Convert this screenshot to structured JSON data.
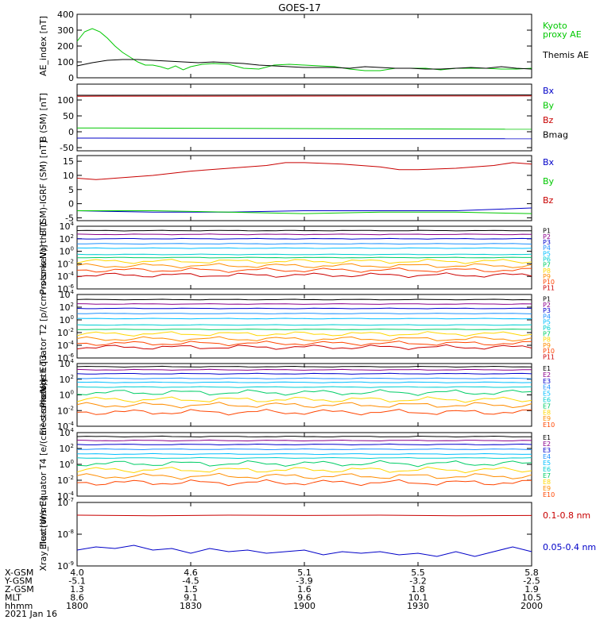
{
  "title": "GOES-17",
  "date": "2021 Jan 16",
  "colors": {
    "black": "#000000",
    "green": "#00c800",
    "red": "#c80000",
    "blue": "#0000c8",
    "P": [
      "#000000",
      "#8b008b",
      "#0000cd",
      "#1e90ff",
      "#00bfff",
      "#00ced1",
      "#00cd66",
      "#ffd700",
      "#ff8c00",
      "#ff4500",
      "#cd0000"
    ],
    "E": [
      "#000000",
      "#8b008b",
      "#0000cd",
      "#1e90ff",
      "#00bfff",
      "#00ced1",
      "#00cd66",
      "#ffd700",
      "#ff8c00",
      "#ff4500"
    ]
  },
  "ephemeris": {
    "ticks": [
      "1800",
      "1830",
      "1900",
      "1930",
      "2000"
    ],
    "rows": [
      {
        "label": "X-GSM",
        "values": [
          "4.0",
          "4.6",
          "5.1",
          "5.5",
          "5.8"
        ]
      },
      {
        "label": "Y-GSM",
        "values": [
          "-5.1",
          "-4.5",
          "-3.9",
          "-3.2",
          "-2.5"
        ]
      },
      {
        "label": "Z-GSM",
        "values": [
          "1.3",
          "1.5",
          "1.6",
          "1.8",
          "1.9"
        ]
      },
      {
        "label": "MLT",
        "values": [
          "8.6",
          "9.1",
          "9.6",
          "10.1",
          "10.5"
        ]
      },
      {
        "label": "hhmm",
        "values": [
          "1800",
          "1830",
          "1900",
          "1930",
          "2000"
        ]
      }
    ]
  },
  "chart_data": [
    {
      "type": "line",
      "ylabel": "AE_index [nT]",
      "ylim": [
        0,
        400
      ],
      "yticks": [
        "0",
        "100",
        "200",
        "300",
        "400"
      ],
      "series": [
        {
          "name": "Kyoto proxy AE",
          "color": "green",
          "legend": [
            "Kyoto",
            "proxy AE"
          ],
          "x": [
            0,
            2,
            4,
            6,
            8,
            10,
            12,
            14,
            16,
            18,
            20,
            22,
            24,
            26,
            28,
            30,
            33,
            36,
            40,
            44,
            48,
            52,
            56,
            60,
            64,
            68,
            72,
            76,
            80,
            84,
            88,
            92,
            96,
            100,
            104,
            108,
            112,
            116,
            120
          ],
          "values": [
            230,
            290,
            310,
            290,
            250,
            200,
            160,
            130,
            100,
            80,
            80,
            70,
            55,
            75,
            50,
            70,
            85,
            90,
            85,
            60,
            55,
            80,
            85,
            80,
            75,
            70,
            55,
            45,
            45,
            60,
            60,
            60,
            50,
            60,
            60,
            60,
            55,
            55,
            60
          ]
        },
        {
          "name": "Themis AE",
          "color": "black",
          "legend": [
            "Themis AE"
          ],
          "x": [
            0,
            4,
            8,
            12,
            16,
            20,
            24,
            28,
            32,
            36,
            40,
            44,
            48,
            52,
            56,
            60,
            64,
            68,
            72,
            76,
            80,
            84,
            88,
            92,
            96,
            100,
            104,
            108,
            112,
            116,
            120
          ],
          "values": [
            75,
            95,
            110,
            115,
            115,
            110,
            105,
            100,
            95,
            100,
            95,
            90,
            80,
            75,
            70,
            65,
            65,
            65,
            60,
            70,
            65,
            60,
            60,
            55,
            55,
            60,
            65,
            60,
            70,
            60,
            55
          ]
        }
      ]
    },
    {
      "type": "line",
      "ylabel": "B (SM) [nT]",
      "ylim": [
        -60,
        150
      ],
      "yticks": [
        "-50",
        "0",
        "50",
        "100"
      ],
      "series": [
        {
          "name": "Bx",
          "color": "blue",
          "x": [
            0,
            120
          ],
          "values": [
            -20,
            -22
          ]
        },
        {
          "name": "By",
          "color": "green",
          "x": [
            0,
            120
          ],
          "values": [
            12,
            8
          ]
        },
        {
          "name": "Bz",
          "color": "red",
          "x": [
            0,
            120
          ],
          "values": [
            112,
            113
          ]
        },
        {
          "name": "Bmag",
          "color": "black",
          "x": [
            0,
            120
          ],
          "values": [
            115,
            116
          ]
        }
      ]
    },
    {
      "type": "line",
      "ylabel": "B (SM)-IGRF (SM) [nT]",
      "ylim": [
        -6,
        17
      ],
      "yticks": [
        "-5",
        "0",
        "5",
        "10",
        "15"
      ],
      "series": [
        {
          "name": "Bx",
          "color": "blue",
          "x": [
            0,
            20,
            40,
            60,
            80,
            100,
            120
          ],
          "values": [
            -2.5,
            -3,
            -3,
            -2.5,
            -2.5,
            -2.5,
            -1.5
          ]
        },
        {
          "name": "By",
          "color": "green",
          "x": [
            0,
            20,
            40,
            60,
            80,
            100,
            120
          ],
          "values": [
            -2.5,
            -2.5,
            -3,
            -3.5,
            -3,
            -3,
            -3.5
          ]
        },
        {
          "name": "Bz",
          "color": "red",
          "x": [
            0,
            5,
            10,
            20,
            30,
            40,
            50,
            55,
            60,
            70,
            80,
            85,
            90,
            100,
            110,
            115,
            120
          ],
          "values": [
            9,
            8.5,
            9,
            10,
            11.5,
            12.5,
            13.5,
            14.5,
            14.5,
            14,
            13,
            12,
            12,
            12.5,
            13.5,
            14.5,
            14
          ]
        }
      ]
    },
    {
      "type": "line",
      "log": true,
      "ylabel": "Protons North T1",
      "ylim": [
        -6,
        4
      ],
      "yticks": [
        "10^-6",
        "10^-4",
        "10^-2",
        "10^0",
        "10^2",
        "10^4"
      ],
      "labels": [
        "P1",
        "P2",
        "P3",
        "P4",
        "P5",
        "P6",
        "P7",
        "P8",
        "P9",
        "P10",
        "P11"
      ],
      "levels": [
        3.3,
        2.7,
        2.0,
        1.2,
        0.5,
        -0.5,
        -1.0,
        -1.6,
        -2.3,
        -3.0,
        -3.8
      ]
    },
    {
      "type": "line",
      "log": true,
      "ylabel": "Protons Equator T2 [p/(cm²-s-sr-keV)]",
      "ylim": [
        -6,
        4
      ],
      "yticks": [
        "10^-6",
        "10^-4",
        "10^-2",
        "10^0",
        "10^2",
        "10^4"
      ],
      "labels": [
        "P1",
        "P2",
        "P3",
        "P4",
        "P5",
        "P6",
        "P7",
        "P8",
        "P9",
        "P10",
        "P11"
      ],
      "levels": [
        3.2,
        2.5,
        1.8,
        1.0,
        0.2,
        -0.8,
        -1.5,
        -2.2,
        -3.0,
        -3.7,
        -4.3
      ]
    },
    {
      "type": "line",
      "log": true,
      "ylabel": "Electrons North T3",
      "ylim": [
        -4,
        4
      ],
      "yticks": [
        "10^-4",
        "10^-2",
        "10^0",
        "10^2",
        "10^4"
      ],
      "labels": [
        "E1",
        "E2",
        "E3",
        "E4",
        "E5",
        "E6",
        "E7",
        "E8",
        "E9",
        "E10"
      ],
      "levels": [
        3.6,
        3.2,
        2.7,
        2.1,
        1.6,
        1.0,
        0.3,
        -0.6,
        -1.3,
        -2.2
      ]
    },
    {
      "type": "line",
      "log": true,
      "ylabel": "Electrons Equator T4 [e/(cm²-s-sr-keV)]",
      "ylim": [
        -4,
        4
      ],
      "yticks": [
        "10^-4",
        "10^-2",
        "10^0",
        "10^2",
        "10^4"
      ],
      "labels": [
        "E1",
        "E2",
        "E3",
        "E4",
        "E5",
        "E6",
        "E7",
        "E8",
        "E9",
        "E10"
      ],
      "levels": [
        3.5,
        3.0,
        2.5,
        1.9,
        1.3,
        0.8,
        0.1,
        -0.7,
        -1.5,
        -2.3
      ]
    },
    {
      "type": "line",
      "log": true,
      "ylabel": "Xray_flux [W/m²]",
      "ylim": [
        -9,
        -7
      ],
      "yticks": [
        "10^-9",
        "10^-8",
        "10^-7"
      ],
      "series": [
        {
          "name": "0.1-0.8 nm",
          "color": "red",
          "x": [
            0,
            20,
            40,
            60,
            80,
            100,
            120
          ],
          "values": [
            -7.4,
            -7.42,
            -7.4,
            -7.41,
            -7.4,
            -7.42,
            -7.41
          ]
        },
        {
          "name": "0.05-0.4 nm",
          "color": "blue",
          "x": [
            0,
            5,
            10,
            15,
            20,
            25,
            30,
            35,
            40,
            45,
            50,
            55,
            60,
            65,
            70,
            75,
            80,
            85,
            90,
            95,
            100,
            105,
            110,
            115,
            120
          ],
          "values": [
            -8.5,
            -8.4,
            -8.45,
            -8.35,
            -8.5,
            -8.45,
            -8.6,
            -8.45,
            -8.55,
            -8.5,
            -8.6,
            -8.55,
            -8.5,
            -8.65,
            -8.55,
            -8.6,
            -8.55,
            -8.65,
            -8.6,
            -8.7,
            -8.55,
            -8.7,
            -8.55,
            -8.4,
            -8.55
          ]
        }
      ]
    }
  ]
}
